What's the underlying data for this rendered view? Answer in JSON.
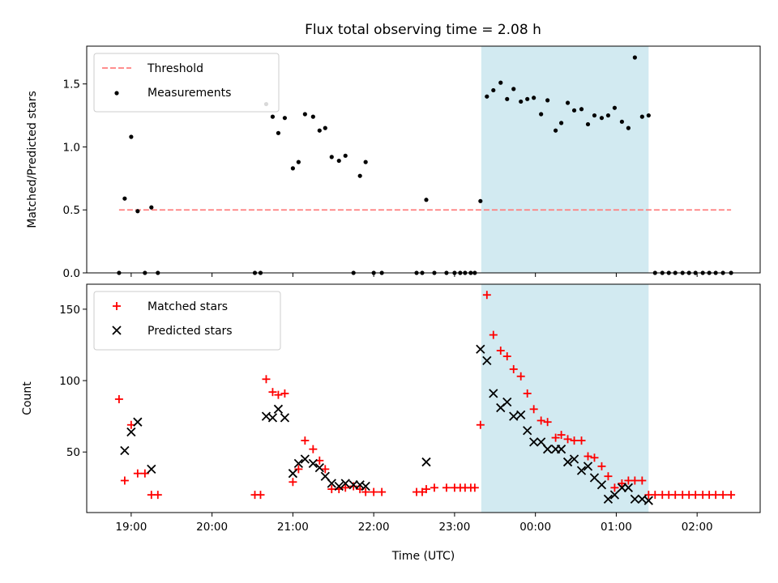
{
  "title": "Flux total observing time = 2.08 h",
  "chart_data": [
    {
      "type": "scatter",
      "ylabel": "Matched/Predicted stars",
      "ylim": [
        0,
        1.8
      ],
      "yticks": [
        0.0,
        0.5,
        1.0,
        1.5
      ],
      "ytick_labels": [
        "0.0",
        "0.5",
        "1.0",
        "1.5"
      ],
      "legend_position": "upper-left",
      "threshold": {
        "name": "Threshold",
        "value": 0.5,
        "x": [
          18.85,
          26.42
        ],
        "color": "#ff7f7f",
        "style": "dashed"
      },
      "series": [
        {
          "name": "Measurements",
          "color": "#000000",
          "marker": "dot",
          "points": [
            [
              18.85,
              0.0
            ],
            [
              18.92,
              0.59
            ],
            [
              19.0,
              1.08
            ],
            [
              19.08,
              0.49
            ],
            [
              19.17,
              0.0
            ],
            [
              19.25,
              0.52
            ],
            [
              19.33,
              0.0
            ],
            [
              20.53,
              0.0
            ],
            [
              20.6,
              0.0
            ],
            [
              20.67,
              1.34
            ],
            [
              20.75,
              1.24
            ],
            [
              20.82,
              1.11
            ],
            [
              20.9,
              1.23
            ],
            [
              21.0,
              0.83
            ],
            [
              21.07,
              0.88
            ],
            [
              21.15,
              1.26
            ],
            [
              21.25,
              1.24
            ],
            [
              21.33,
              1.13
            ],
            [
              21.4,
              1.15
            ],
            [
              21.48,
              0.92
            ],
            [
              21.57,
              0.89
            ],
            [
              21.65,
              0.93
            ],
            [
              21.75,
              0.0
            ],
            [
              21.83,
              0.77
            ],
            [
              21.9,
              0.88
            ],
            [
              22.0,
              0.0
            ],
            [
              22.1,
              0.0
            ],
            [
              22.53,
              0.0
            ],
            [
              22.6,
              0.0
            ],
            [
              22.65,
              0.58
            ],
            [
              22.75,
              0.0
            ],
            [
              22.9,
              0.0
            ],
            [
              23.0,
              0.0
            ],
            [
              23.07,
              0.0
            ],
            [
              23.13,
              0.0
            ],
            [
              23.2,
              0.0
            ],
            [
              23.25,
              0.0
            ],
            [
              23.32,
              0.57
            ],
            [
              23.4,
              1.4
            ],
            [
              23.48,
              1.45
            ],
            [
              23.57,
              1.51
            ],
            [
              23.65,
              1.38
            ],
            [
              23.73,
              1.46
            ],
            [
              23.82,
              1.36
            ],
            [
              23.9,
              1.38
            ],
            [
              23.98,
              1.39
            ],
            [
              24.07,
              1.26
            ],
            [
              24.15,
              1.37
            ],
            [
              24.25,
              1.13
            ],
            [
              24.32,
              1.19
            ],
            [
              24.4,
              1.35
            ],
            [
              24.48,
              1.29
            ],
            [
              24.57,
              1.3
            ],
            [
              24.65,
              1.18
            ],
            [
              24.73,
              1.25
            ],
            [
              24.82,
              1.23
            ],
            [
              24.9,
              1.25
            ],
            [
              24.98,
              1.31
            ],
            [
              25.07,
              1.2
            ],
            [
              25.15,
              1.15
            ],
            [
              25.23,
              1.71
            ],
            [
              25.32,
              1.24
            ],
            [
              25.4,
              1.25
            ],
            [
              25.48,
              0.0
            ],
            [
              25.57,
              0.0
            ],
            [
              25.65,
              0.0
            ],
            [
              25.73,
              0.0
            ],
            [
              25.82,
              0.0
            ],
            [
              25.9,
              0.0
            ],
            [
              25.98,
              0.0
            ],
            [
              26.07,
              0.0
            ],
            [
              26.15,
              0.0
            ],
            [
              26.23,
              0.0
            ],
            [
              26.32,
              0.0
            ],
            [
              26.42,
              0.0
            ]
          ]
        }
      ]
    },
    {
      "type": "scatter",
      "xlabel": "Time (UTC)",
      "ylabel": "Count",
      "ylim": [
        7.6,
        167.5
      ],
      "yticks": [
        50,
        100,
        150
      ],
      "ytick_labels": [
        "50",
        "100",
        "150"
      ],
      "xticks": [
        19,
        20,
        21,
        22,
        23,
        24,
        25,
        26
      ],
      "xtick_labels": [
        "19:00",
        "20:00",
        "21:00",
        "22:00",
        "23:00",
        "00:00",
        "01:00",
        "02:00"
      ],
      "legend_position": "upper-left",
      "series": [
        {
          "name": "Matched stars",
          "color": "#ff0000",
          "marker": "plus",
          "points": [
            [
              18.85,
              87
            ],
            [
              18.92,
              30
            ],
            [
              19.0,
              69
            ],
            [
              19.08,
              35
            ],
            [
              19.17,
              35
            ],
            [
              19.25,
              20
            ],
            [
              19.33,
              20
            ],
            [
              20.53,
              20
            ],
            [
              20.6,
              20
            ],
            [
              20.67,
              101
            ],
            [
              20.75,
              92
            ],
            [
              20.82,
              90
            ],
            [
              20.9,
              91
            ],
            [
              21.0,
              29
            ],
            [
              21.07,
              38
            ],
            [
              21.15,
              58
            ],
            [
              21.25,
              52
            ],
            [
              21.33,
              44
            ],
            [
              21.4,
              38
            ],
            [
              21.48,
              24
            ],
            [
              21.57,
              24
            ],
            [
              21.65,
              25
            ],
            [
              21.75,
              26
            ],
            [
              21.83,
              24
            ],
            [
              21.9,
              22
            ],
            [
              22.0,
              22
            ],
            [
              22.1,
              22
            ],
            [
              22.53,
              22
            ],
            [
              22.6,
              22
            ],
            [
              22.65,
              24
            ],
            [
              22.75,
              25
            ],
            [
              22.9,
              25
            ],
            [
              23.0,
              25
            ],
            [
              23.07,
              25
            ],
            [
              23.13,
              25
            ],
            [
              23.2,
              25
            ],
            [
              23.25,
              25
            ],
            [
              23.32,
              69
            ],
            [
              23.4,
              160
            ],
            [
              23.48,
              132
            ],
            [
              23.57,
              121
            ],
            [
              23.65,
              117
            ],
            [
              23.73,
              108
            ],
            [
              23.82,
              103
            ],
            [
              23.9,
              91
            ],
            [
              23.98,
              80
            ],
            [
              24.07,
              72
            ],
            [
              24.15,
              71
            ],
            [
              24.25,
              60
            ],
            [
              24.32,
              62
            ],
            [
              24.4,
              59
            ],
            [
              24.48,
              58
            ],
            [
              24.57,
              58
            ],
            [
              24.65,
              47
            ],
            [
              24.73,
              46
            ],
            [
              24.82,
              40
            ],
            [
              24.9,
              33
            ],
            [
              24.98,
              25
            ],
            [
              25.07,
              28
            ],
            [
              25.15,
              30
            ],
            [
              25.23,
              30
            ],
            [
              25.32,
              30
            ],
            [
              25.4,
              20
            ],
            [
              25.48,
              20
            ],
            [
              25.57,
              20
            ],
            [
              25.65,
              20
            ],
            [
              25.73,
              20
            ],
            [
              25.82,
              20
            ],
            [
              25.9,
              20
            ],
            [
              25.98,
              20
            ],
            [
              26.07,
              20
            ],
            [
              26.15,
              20
            ],
            [
              26.23,
              20
            ],
            [
              26.32,
              20
            ],
            [
              26.42,
              20
            ]
          ]
        },
        {
          "name": "Predicted stars",
          "color": "#000000",
          "marker": "x",
          "points": [
            [
              18.92,
              51
            ],
            [
              19.0,
              64
            ],
            [
              19.08,
              71
            ],
            [
              19.25,
              38
            ],
            [
              20.67,
              75
            ],
            [
              20.75,
              74
            ],
            [
              20.82,
              80
            ],
            [
              20.9,
              74
            ],
            [
              21.0,
              35
            ],
            [
              21.07,
              42
            ],
            [
              21.15,
              45
            ],
            [
              21.25,
              42
            ],
            [
              21.33,
              39
            ],
            [
              21.4,
              33
            ],
            [
              21.48,
              28
            ],
            [
              21.57,
              26
            ],
            [
              21.65,
              28
            ],
            [
              21.75,
              27
            ],
            [
              21.83,
              27
            ],
            [
              21.9,
              26
            ],
            [
              22.65,
              43
            ],
            [
              23.32,
              122
            ],
            [
              23.4,
              114
            ],
            [
              23.48,
              91
            ],
            [
              23.57,
              81
            ],
            [
              23.65,
              85
            ],
            [
              23.73,
              75
            ],
            [
              23.82,
              76
            ],
            [
              23.9,
              65
            ],
            [
              23.98,
              57
            ],
            [
              24.07,
              57
            ],
            [
              24.15,
              52
            ],
            [
              24.25,
              52
            ],
            [
              24.32,
              52
            ],
            [
              24.4,
              43
            ],
            [
              24.48,
              45
            ],
            [
              24.57,
              37
            ],
            [
              24.65,
              40
            ],
            [
              24.73,
              32
            ],
            [
              24.82,
              27
            ],
            [
              24.9,
              17
            ],
            [
              24.98,
              20
            ],
            [
              25.07,
              25
            ],
            [
              25.15,
              25
            ],
            [
              25.23,
              17
            ],
            [
              25.32,
              17
            ],
            [
              25.4,
              16
            ]
          ]
        }
      ]
    }
  ],
  "shade": {
    "x": [
      23.33,
      25.4
    ],
    "color": "#add8e6"
  },
  "xlim": [
    18.45,
    26.78
  ]
}
